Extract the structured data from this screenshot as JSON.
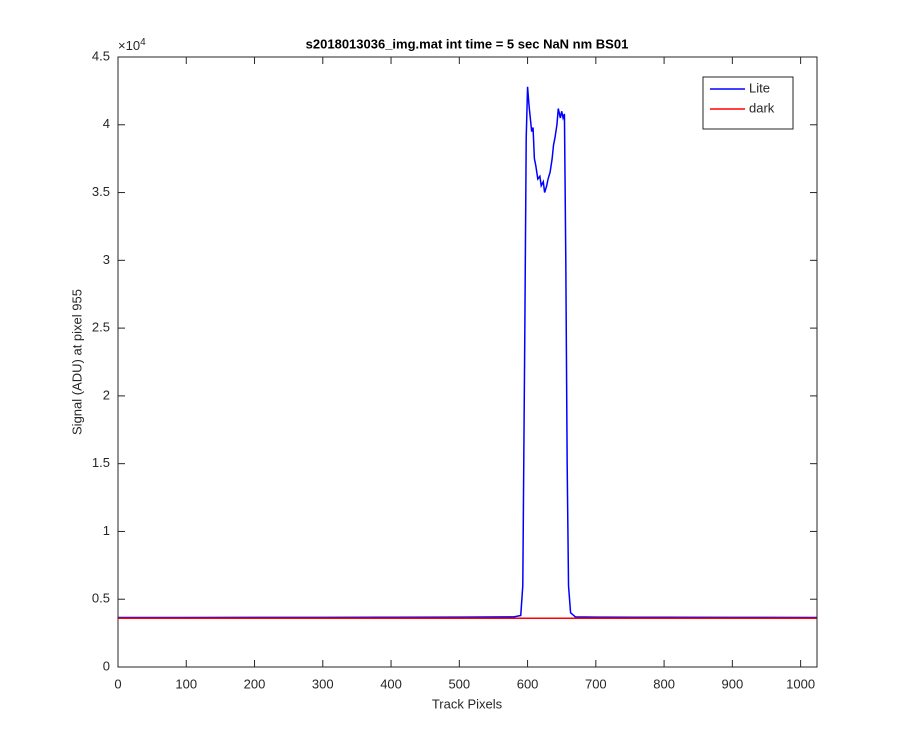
{
  "chart_data": {
    "type": "line",
    "title": "s2018013036_img.mat int time = 5 sec  NaN nm BS01",
    "x_label": "Track Pixels",
    "y_label": "Signal (ADU) at pixel 955",
    "y_scale_base": "×10",
    "y_scale_power": "4",
    "xlim": [
      0,
      1024
    ],
    "ylim": [
      0,
      4.5
    ],
    "xticks": [
      0,
      100,
      200,
      300,
      400,
      500,
      600,
      700,
      800,
      900,
      1000
    ],
    "yticks": [
      0,
      0.5,
      1,
      1.5,
      2,
      2.5,
      3,
      3.5,
      4,
      4.5
    ],
    "legend_position": "upper right",
    "series": [
      {
        "name": "Lite",
        "color": "#0000ff",
        "x": [
          0,
          100,
          200,
          300,
          400,
          500,
          580,
          590,
          593,
          596,
          598,
          600,
          602,
          604,
          606,
          608,
          610,
          612,
          615,
          618,
          620,
          623,
          625,
          628,
          630,
          633,
          636,
          638,
          640,
          643,
          645,
          648,
          650,
          652,
          654,
          656,
          658,
          660,
          663,
          670,
          700,
          800,
          900,
          1024
        ],
        "values": [
          0.365,
          0.365,
          0.366,
          0.366,
          0.367,
          0.368,
          0.37,
          0.38,
          0.6,
          2.5,
          3.9,
          4.28,
          4.15,
          4.05,
          3.95,
          3.98,
          3.75,
          3.7,
          3.6,
          3.62,
          3.55,
          3.58,
          3.5,
          3.55,
          3.6,
          3.65,
          3.75,
          3.85,
          3.9,
          4.0,
          4.12,
          4.05,
          4.1,
          4.05,
          4.08,
          3.0,
          1.5,
          0.6,
          0.4,
          0.37,
          0.368,
          0.367,
          0.366,
          0.365
        ]
      },
      {
        "name": "dark",
        "color": "#ff0000",
        "x": [
          0,
          200,
          400,
          600,
          800,
          1024
        ],
        "values": [
          0.36,
          0.36,
          0.36,
          0.36,
          0.36,
          0.36
        ]
      }
    ]
  }
}
